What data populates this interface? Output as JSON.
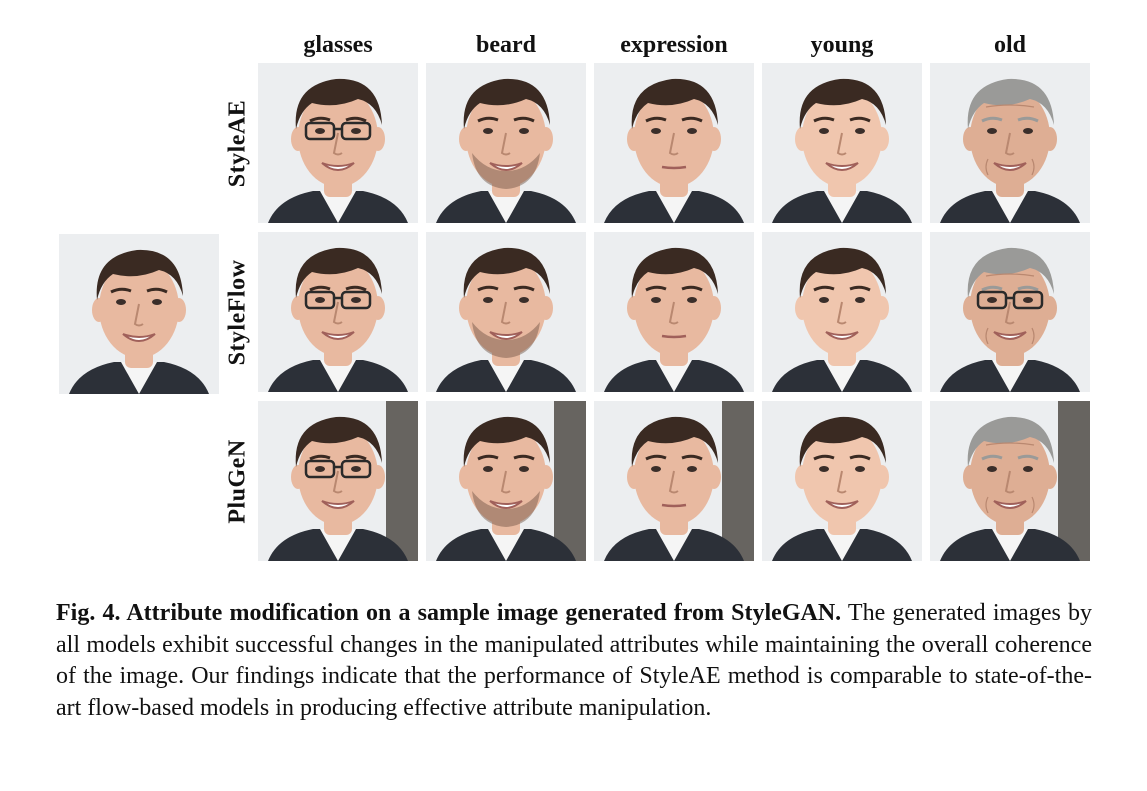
{
  "columns": [
    "glasses",
    "beard",
    "expression",
    "young",
    "old"
  ],
  "rows": [
    "StyleAE",
    "StyleFlow",
    "PluGeN"
  ],
  "caption": {
    "title": "Fig. 4. Attribute modification on a sample image generated from StyleGAN.",
    "body": "The generated images by all models exhibit successful changes in the manipulated attributes while maintaining the overall coherence of the image. Our findings indicate that the performance of StyleAE method is comparable to state-of-the-art flow-based models in producing effective attribute manipulation."
  },
  "colors": {
    "skin": "#e8b9a0",
    "hair_dark": "#3a2a22",
    "hair_gray": "#9a9a98",
    "background_light": "#eceef0",
    "suit": "#2c3038",
    "shirt": "#f5f5f5"
  }
}
